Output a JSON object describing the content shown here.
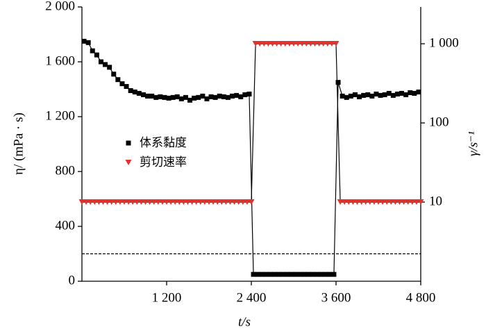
{
  "chart_data": {
    "type": "line",
    "xlabel": "t/s",
    "ylabel": "η/ (mPa · s)",
    "y2label": "γ/s⁻¹",
    "xlim": [
      0,
      4800
    ],
    "xticks": [
      {
        "value": 1200,
        "label": "1 200"
      },
      {
        "value": 2400,
        "label": "2 400"
      },
      {
        "value": 3600,
        "label": "3 600"
      },
      {
        "value": 4800,
        "label": "4 800"
      }
    ],
    "ylim": [
      0,
      2000
    ],
    "yticks": [
      0,
      400,
      800,
      {
        "value": 1200,
        "label": "1 200"
      },
      {
        "value": 1600,
        "label": "1 600"
      },
      {
        "value": 2000,
        "label": "2 000"
      }
    ],
    "y2lim": [
      1,
      2920
    ],
    "y2scale": "log",
    "y2ticks": [
      10,
      100,
      {
        "value": 1000,
        "label": "1 000"
      }
    ],
    "reference_line": 200,
    "series": [
      {
        "name": "体系黏度",
        "color": "#000000",
        "marker": "square",
        "x": [
          30,
          90,
          150,
          210,
          270,
          330,
          390,
          450,
          510,
          570,
          630,
          690,
          750,
          810,
          870,
          930,
          990,
          1050,
          1110,
          1170,
          1230,
          1290,
          1350,
          1410,
          1470,
          1530,
          1590,
          1650,
          1710,
          1770,
          1830,
          1890,
          1950,
          2010,
          2070,
          2130,
          2190,
          2250,
          2310,
          2370,
          2430,
          2490,
          2550,
          2610,
          2670,
          2730,
          2790,
          2850,
          2910,
          2970,
          3030,
          3090,
          3150,
          3210,
          3270,
          3330,
          3390,
          3450,
          3510,
          3570,
          3630,
          3690,
          3750,
          3810,
          3870,
          3930,
          3990,
          4050,
          4110,
          4170,
          4230,
          4290,
          4350,
          4410,
          4470,
          4530,
          4590,
          4650,
          4710,
          4770
        ],
        "values": [
          1750,
          1740,
          1680,
          1650,
          1600,
          1580,
          1560,
          1510,
          1470,
          1440,
          1420,
          1390,
          1380,
          1370,
          1360,
          1350,
          1350,
          1340,
          1345,
          1340,
          1335,
          1340,
          1345,
          1330,
          1340,
          1320,
          1335,
          1340,
          1350,
          1330,
          1345,
          1340,
          1350,
          1345,
          1340,
          1350,
          1355,
          1345,
          1360,
          1365,
          50,
          50,
          50,
          50,
          50,
          50,
          50,
          50,
          50,
          50,
          50,
          50,
          50,
          50,
          50,
          50,
          50,
          50,
          50,
          50,
          1450,
          1350,
          1340,
          1350,
          1360,
          1345,
          1355,
          1360,
          1350,
          1365,
          1355,
          1360,
          1370,
          1355,
          1365,
          1370,
          1360,
          1375,
          1370,
          1380
        ]
      },
      {
        "name": "剪切速率",
        "color": "#e8302a",
        "marker": "triangle-down",
        "axis": "y2",
        "x": [
          0,
          60,
          120,
          180,
          240,
          300,
          360,
          420,
          480,
          540,
          600,
          660,
          720,
          780,
          840,
          900,
          960,
          1020,
          1080,
          1140,
          1200,
          1260,
          1320,
          1380,
          1440,
          1500,
          1560,
          1620,
          1680,
          1740,
          1800,
          1860,
          1920,
          1980,
          2040,
          2100,
          2160,
          2220,
          2280,
          2340,
          2400,
          2460,
          2520,
          2580,
          2640,
          2700,
          2760,
          2820,
          2880,
          2940,
          3000,
          3060,
          3120,
          3180,
          3240,
          3300,
          3360,
          3420,
          3480,
          3540,
          3600,
          3660,
          3720,
          3780,
          3840,
          3900,
          3960,
          4020,
          4080,
          4140,
          4200,
          4260,
          4320,
          4380,
          4440,
          4500,
          4560,
          4620,
          4680,
          4740,
          4800
        ],
        "values": [
          10,
          10,
          10,
          10,
          10,
          10,
          10,
          10,
          10,
          10,
          10,
          10,
          10,
          10,
          10,
          10,
          10,
          10,
          10,
          10,
          10,
          10,
          10,
          10,
          10,
          10,
          10,
          10,
          10,
          10,
          10,
          10,
          10,
          10,
          10,
          10,
          10,
          10,
          10,
          10,
          10,
          1000,
          1000,
          1000,
          1000,
          1000,
          1000,
          1000,
          1000,
          1000,
          1000,
          1000,
          1000,
          1000,
          1000,
          1000,
          1000,
          1000,
          1000,
          1000,
          1000,
          10,
          10,
          10,
          10,
          10,
          10,
          10,
          10,
          10,
          10,
          10,
          10,
          10,
          10,
          10,
          10,
          10,
          10,
          10,
          10
        ]
      }
    ]
  }
}
